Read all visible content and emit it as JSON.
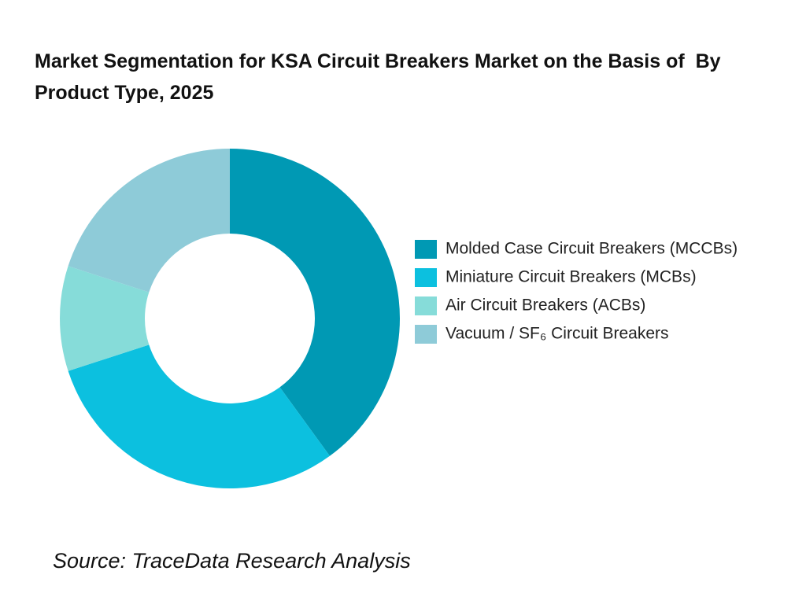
{
  "chart_data": {
    "type": "donut",
    "title": "Market Segmentation for KSA Circuit Breakers Market on the Basis of  By Product Type, 2025",
    "categories": [
      "Molded Case Circuit Breakers (MCCBs)",
      "Miniature Circuit Breakers (MCBs)",
      "Air Circuit Breakers (ACBs)",
      "Vacuum / SF₆ Circuit Breakers"
    ],
    "values": [
      40,
      30,
      10,
      20
    ],
    "colors": [
      "#0099b4",
      "#0cc0df",
      "#86dcd9",
      "#8ecbd8"
    ],
    "legend": "right",
    "source": "Source: TraceData Research Analysis"
  }
}
